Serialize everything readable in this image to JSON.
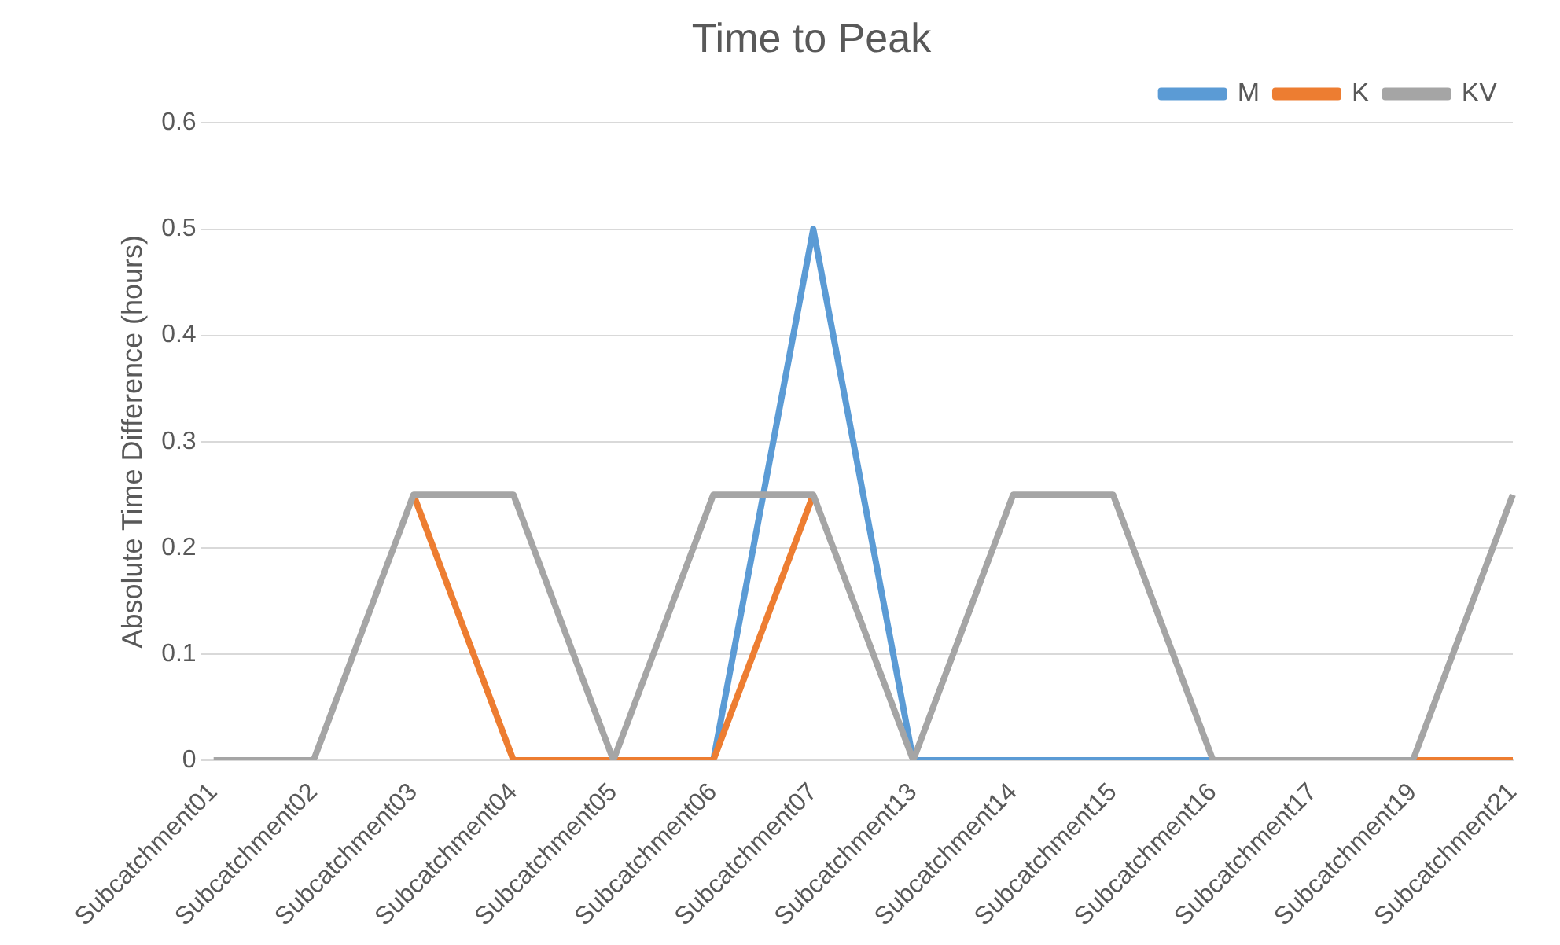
{
  "chart_data": {
    "type": "line",
    "title": "Time to Peak",
    "ylabel": "Absolute Time Difference (hours)",
    "categories": [
      "Subcatchment01",
      "Subcatchment02",
      "Subcatchment03",
      "Subcatchment04",
      "Subcatchment05",
      "Subcatchment06",
      "Subcatchment07",
      "Subcatchment13",
      "Subcatchment14",
      "Subcatchment15",
      "Subcatchment16",
      "Subcatchment17",
      "Subcatchment19",
      "Subcatchment21"
    ],
    "series": [
      {
        "name": "M",
        "color": "#5b9bd5",
        "values": [
          null,
          null,
          null,
          null,
          null,
          0,
          0.5,
          0,
          0,
          0,
          0,
          null,
          null,
          null
        ]
      },
      {
        "name": "K",
        "color": "#ed7d31",
        "values": [
          null,
          null,
          0.25,
          0,
          0,
          0,
          0.25,
          null,
          null,
          null,
          null,
          null,
          0,
          0
        ]
      },
      {
        "name": "KV",
        "color": "#a5a5a5",
        "values": [
          0,
          0,
          0.25,
          0.25,
          0,
          0.25,
          0.25,
          0,
          0.25,
          0.25,
          0,
          0,
          0,
          0.25
        ]
      }
    ],
    "ylim": [
      0,
      0.6
    ],
    "yticks": [
      0,
      0.1,
      0.2,
      0.3,
      0.4,
      0.5,
      0.6
    ],
    "grid": "y",
    "legend": "top right",
    "marker": "none",
    "line_style": "solid"
  }
}
